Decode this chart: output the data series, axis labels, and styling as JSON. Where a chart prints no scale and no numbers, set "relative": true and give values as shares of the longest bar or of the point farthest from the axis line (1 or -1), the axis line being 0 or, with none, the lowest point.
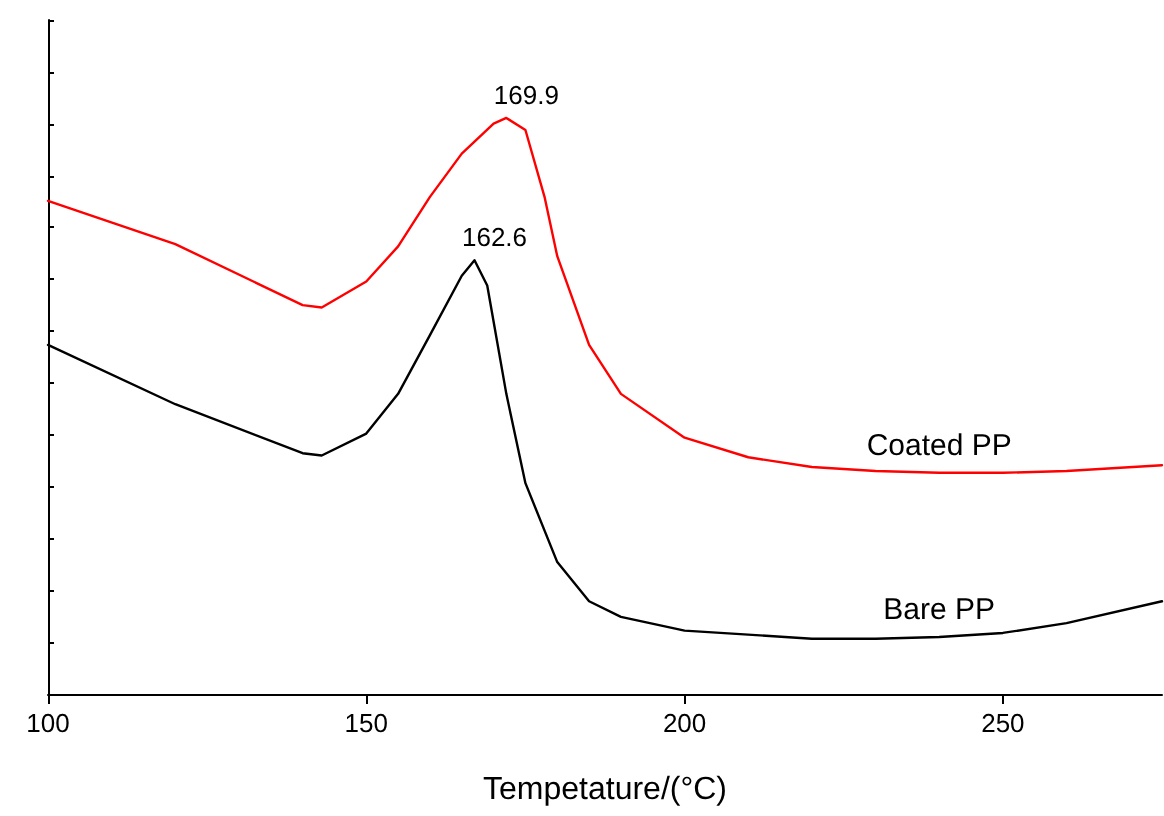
{
  "chart_data": {
    "type": "line",
    "relative": true,
    "xlabel": "Tempetature/(°C)",
    "xlim": [
      100,
      275
    ],
    "xticks": [
      100,
      150,
      200,
      250
    ],
    "tick_labels": "x",
    "grid": false,
    "legend": false,
    "marker": "none",
    "line_style": "solid",
    "series": [
      {
        "name": "Coated PP",
        "color": "#ff0000",
        "x": [
          100,
          120,
          140,
          143,
          150,
          155,
          160,
          165,
          170,
          172,
          175,
          178,
          180,
          185,
          190,
          200,
          210,
          220,
          230,
          240,
          250,
          260,
          275
        ],
        "values": [
          0.856,
          0.781,
          0.675,
          0.671,
          0.716,
          0.777,
          0.863,
          0.938,
          0.99,
          1.0,
          0.979,
          0.863,
          0.76,
          0.606,
          0.521,
          0.445,
          0.411,
          0.394,
          0.387,
          0.384,
          0.384,
          0.387,
          0.397
        ]
      },
      {
        "name": "Bare PP",
        "color": "#000000",
        "x": [
          100,
          120,
          140,
          143,
          150,
          155,
          160,
          165,
          167,
          169,
          172,
          175,
          180,
          185,
          190,
          200,
          220,
          230,
          240,
          250,
          260,
          275
        ],
        "values": [
          0.606,
          0.503,
          0.418,
          0.414,
          0.452,
          0.521,
          0.623,
          0.726,
          0.753,
          0.709,
          0.521,
          0.366,
          0.229,
          0.161,
          0.134,
          0.11,
          0.096,
          0.096,
          0.099,
          0.106,
          0.123,
          0.161
        ]
      }
    ],
    "annotations": [
      {
        "text": "169.9",
        "x": 172,
        "y": 1.0
      },
      {
        "text": "162.6",
        "x": 167,
        "y": 0.753
      }
    ]
  }
}
